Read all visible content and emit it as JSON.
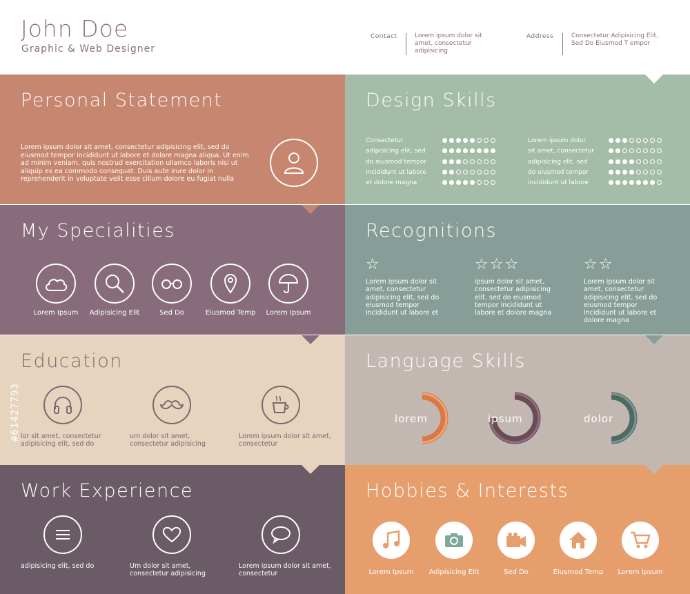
{
  "header": {
    "name": "John Doe",
    "role": "Graphic & Web Designer",
    "contact_label": "Contact",
    "contact_value": "Lorem ipsum dolor sit amet, consectetur adipisicing",
    "address_label": "Address",
    "address_value": "Consectetur Adipisicing Elit, Sed Do Eiusmod T empor"
  },
  "statement": {
    "title": "Personal Statement",
    "text": "Lorem ipsum dolor sit amet, consectetur adipisicing elit, sed do eiusmod tempor incididunt ut labore et dolore magna aliqua. Ut enim ad minim veniam, quis nostrud exercitation ullamco laboris nisi ut aliquip ex ea commodo consequat. Duis aute irure dolor in reprehenderit in voluptate velit esse cillum dolore eu fugiat nulla",
    "icon": "user-icon"
  },
  "design": {
    "title": "Design Skills",
    "left_labels": [
      "Consectetur",
      "adipisicing elit, sed",
      "do eiusmod tempor",
      "incididunt ut labore",
      "et dolore magna"
    ],
    "right_labels": [
      "Lorem ipsum dolor",
      "sit amet, consectetur",
      "adipisicing elit, sed",
      "do eiusmod tempor",
      "incididunt ut labore"
    ],
    "left_levels": [
      5,
      8,
      3,
      2,
      5
    ],
    "right_levels": [
      3,
      2,
      4,
      4,
      7
    ],
    "max_level": 8
  },
  "specialities": {
    "title": "My Specialities",
    "items": [
      {
        "label": "Lorem Ipsum",
        "icon": "cloud-icon"
      },
      {
        "label": "Adipisicing Elit",
        "icon": "search-icon"
      },
      {
        "label": "Sed Do",
        "icon": "glasses-icon"
      },
      {
        "label": "Eiusmod Temp",
        "icon": "location-pin-icon"
      },
      {
        "label": "Lorem Ipsum",
        "icon": "umbrella-icon"
      }
    ]
  },
  "recognitions": {
    "title": "Recognitions",
    "items": [
      {
        "stars": 1,
        "text": "Lorem ipsum dolor sit amet, consectetur adipisicing elit, sed do eiusmod tempor incididunt ut labore et"
      },
      {
        "stars": 3,
        "text": "ipsum dolor sit amet, consectetur adipisicing elit, sed do eiusmod tempor incididunt ut labore et dolore magna"
      },
      {
        "stars": 2,
        "text": "Lorem ipsum dolor sit amet, consectetur adipisicing elit, sed do eiusmod tempor incididunt ut labore et dolore magna"
      }
    ]
  },
  "education": {
    "title": "Education",
    "items": [
      {
        "icon": "headphones-icon",
        "text": "lor sit amet, consectetur adipisicing elit, sed do"
      },
      {
        "icon": "mustache-icon",
        "text": "um dolor sit amet, consectetur adipisicing"
      },
      {
        "icon": "coffee-cup-icon",
        "text": "Lorem ipsum dolor sit amet, consectetur"
      }
    ]
  },
  "languages": {
    "title": "Language Skills",
    "items": [
      {
        "label": "lorem",
        "fraction": 0.5,
        "color": "#d9784a",
        "light": "#f0a577"
      },
      {
        "label": "ipsum",
        "fraction": 0.75,
        "color": "#6a4c57",
        "light": "#8f6f7c"
      },
      {
        "label": "dolor",
        "fraction": 0.5,
        "color": "#4f6a62",
        "light": "#7c968d"
      }
    ]
  },
  "work": {
    "title": "Work Experience",
    "items": [
      {
        "icon": "menu-icon",
        "text": "adipisicing elit, sed do"
      },
      {
        "icon": "heart-icon",
        "text": "Um dolor sit amet, consectetur adipisicing"
      },
      {
        "icon": "speech-bubble-icon",
        "text": "Lorem ipsum dolor sit amet, consectetur"
      }
    ]
  },
  "hobbies": {
    "title": "Hobbies & Interests",
    "items": [
      {
        "label": "Lorem Ipsum",
        "icon": "music-note-icon"
      },
      {
        "label": "Adipisicing Elit",
        "icon": "camera-icon"
      },
      {
        "label": "Sed Do",
        "icon": "video-camera-icon"
      },
      {
        "label": "Eiusmod Temp",
        "icon": "home-icon"
      },
      {
        "label": "Lorem Ipsum",
        "icon": "shopping-cart-icon"
      }
    ]
  },
  "watermark": "#61427793"
}
